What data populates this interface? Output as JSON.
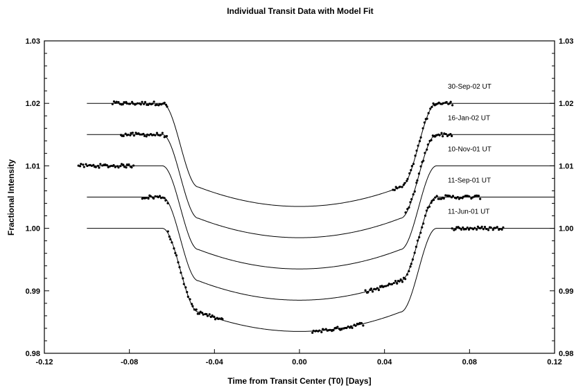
{
  "chart_data": {
    "type": "scatter",
    "title": "Individual Transit Data with Model Fit",
    "xlabel": "Time from Transit Center (T0) [Days]",
    "ylabel": "Fractional Intensity",
    "xlim": [
      -0.12,
      0.12
    ],
    "ylim": [
      0.98,
      1.03
    ],
    "x_ticks": [
      -0.12,
      -0.08,
      -0.04,
      0.0,
      0.04,
      0.08,
      0.12
    ],
    "x_tick_labels": [
      "-0.12",
      "-0.08",
      "-0.04",
      "0.00",
      "0.04",
      "0.08",
      "0.12"
    ],
    "y_ticks": [
      0.98,
      0.99,
      1.0,
      1.01,
      1.02,
      1.03
    ],
    "y_tick_labels": [
      "0.98",
      "0.99",
      "1.00",
      "1.01",
      "1.02",
      "1.03"
    ],
    "y_minor_tick_step": 0.002,
    "right_axis_mirror": true,
    "grid": false,
    "model": {
      "t_contact1": 0.0645,
      "t_contact2": 0.0475,
      "depth": 0.0165,
      "edge_drop": 0.0134,
      "x_start": -0.1,
      "x_end": 0.12
    },
    "series": [
      {
        "name": "30-Sep-02 UT",
        "baseline": 1.02,
        "segments": [
          [
            -0.088,
            -0.062
          ],
          [
            0.044,
            0.072
          ]
        ]
      },
      {
        "name": "16-Jan-02 UT",
        "baseline": 1.015,
        "segments": [
          [
            -0.084,
            -0.062
          ],
          [
            0.05,
            0.072
          ]
        ]
      },
      {
        "name": "10-Nov-01 UT",
        "baseline": 1.01,
        "segments": [
          [
            -0.104,
            -0.078
          ]
        ]
      },
      {
        "name": "11-Sep-01 UT",
        "baseline": 1.005,
        "segments": [
          [
            -0.074,
            -0.062
          ],
          [
            0.031,
            0.085
          ]
        ]
      },
      {
        "name": "11-Jun-01 UT",
        "baseline": 1.0,
        "segments": [
          [
            -0.062,
            -0.036
          ],
          [
            0.006,
            0.03
          ],
          [
            0.072,
            0.096
          ]
        ]
      }
    ]
  }
}
